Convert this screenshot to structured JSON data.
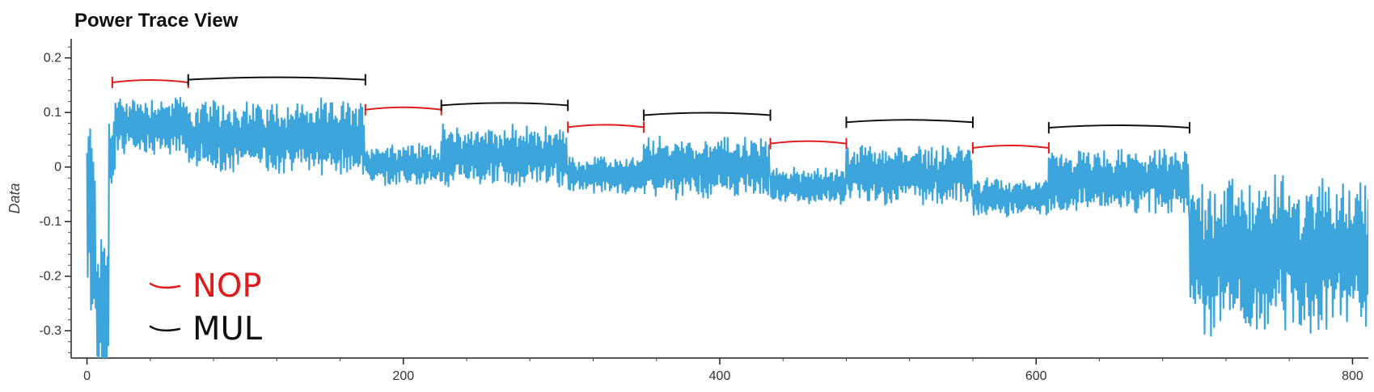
{
  "chart_data": {
    "type": "line",
    "title": "Power Trace View",
    "xlabel": "",
    "ylabel": "Data",
    "xlim": [
      -10,
      810
    ],
    "ylim": [
      -0.35,
      0.235
    ],
    "x_ticks": [
      0,
      200,
      400,
      600,
      800
    ],
    "y_ticks": [
      0.2,
      0.1,
      0,
      -0.1,
      -0.2,
      -0.3
    ],
    "x_tick_labels": [
      "0",
      "200",
      "400",
      "600",
      "800"
    ],
    "y_tick_labels": [
      "0.2",
      "0.1",
      "0",
      "-0.1",
      "-0.2",
      "-0.3"
    ],
    "grid": false,
    "line_color": "#3ca5dc",
    "segments": [
      {
        "x0": 0,
        "x1": 6,
        "center": -0.1,
        "amp": 0.18
      },
      {
        "x0": 6,
        "x1": 14,
        "center": -0.25,
        "amp": 0.12
      },
      {
        "x0": 14,
        "x1": 18,
        "center": 0.03,
        "amp": 0.06
      },
      {
        "x0": 18,
        "x1": 64,
        "center": 0.075,
        "amp": 0.05
      },
      {
        "x0": 64,
        "x1": 176,
        "center": 0.055,
        "amp": 0.06
      },
      {
        "x0": 176,
        "x1": 224,
        "center": 0.005,
        "amp": 0.035
      },
      {
        "x0": 224,
        "x1": 304,
        "center": 0.02,
        "amp": 0.05
      },
      {
        "x0": 304,
        "x1": 352,
        "center": -0.015,
        "amp": 0.03
      },
      {
        "x0": 352,
        "x1": 432,
        "center": 0.0,
        "amp": 0.05
      },
      {
        "x0": 432,
        "x1": 480,
        "center": -0.035,
        "amp": 0.03
      },
      {
        "x0": 480,
        "x1": 560,
        "center": -0.015,
        "amp": 0.05
      },
      {
        "x0": 560,
        "x1": 608,
        "center": -0.055,
        "amp": 0.03
      },
      {
        "x0": 608,
        "x1": 697,
        "center": -0.025,
        "amp": 0.05
      },
      {
        "x0": 697,
        "x1": 810,
        "center": -0.16,
        "amp": 0.13
      }
    ],
    "annotations": [
      {
        "label": "NOP",
        "color": "#e01b1b",
        "x0": 16,
        "x1": 64,
        "y": 0.155
      },
      {
        "label": "MUL",
        "color": "#111111",
        "x0": 64,
        "x1": 176,
        "y": 0.16
      },
      {
        "label": "NOP",
        "color": "#e01b1b",
        "x0": 176,
        "x1": 224,
        "y": 0.105
      },
      {
        "label": "MUL",
        "color": "#111111",
        "x0": 224,
        "x1": 304,
        "y": 0.113
      },
      {
        "label": "NOP",
        "color": "#e01b1b",
        "x0": 304,
        "x1": 352,
        "y": 0.073
      },
      {
        "label": "MUL",
        "color": "#111111",
        "x0": 352,
        "x1": 432,
        "y": 0.095
      },
      {
        "label": "NOP",
        "color": "#e01b1b",
        "x0": 432,
        "x1": 480,
        "y": 0.043
      },
      {
        "label": "MUL",
        "color": "#111111",
        "x0": 480,
        "x1": 560,
        "y": 0.082
      },
      {
        "label": "NOP",
        "color": "#e01b1b",
        "x0": 560,
        "x1": 608,
        "y": 0.035
      },
      {
        "label": "MUL",
        "color": "#111111",
        "x0": 608,
        "x1": 697,
        "y": 0.072
      }
    ],
    "legend": [
      {
        "label": "NOP",
        "color": "#e01b1b"
      },
      {
        "label": "MUL",
        "color": "#111111"
      }
    ],
    "legend_position": "bottom-left"
  }
}
